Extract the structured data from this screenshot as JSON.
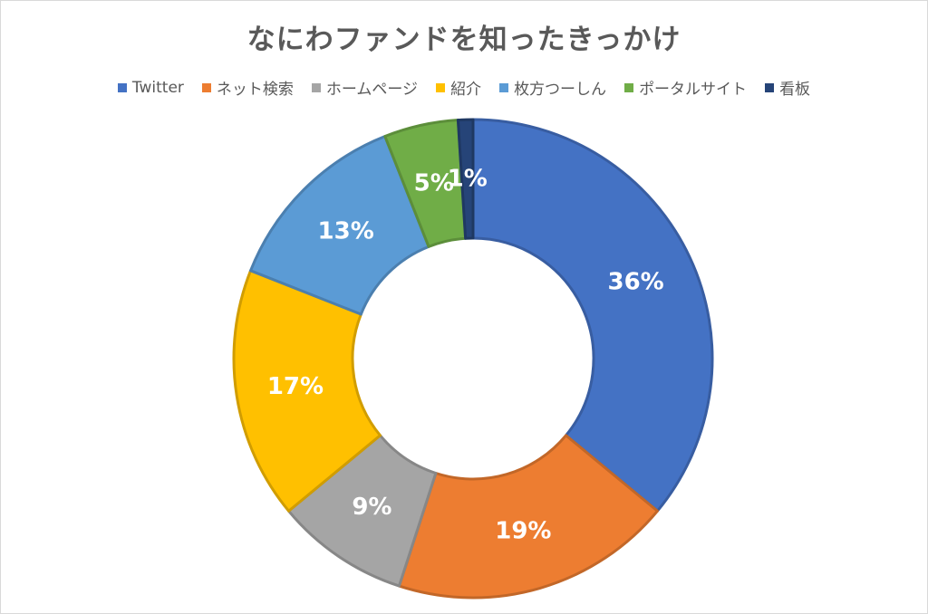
{
  "chart_data": {
    "type": "pie",
    "subtype": "doughnut",
    "title": "なにわファンドを知ったきっかけ",
    "legend_position": "top",
    "categories": [
      "Twitter",
      "ネット検索",
      "ホームページ",
      "紹介",
      "枚方つーしん",
      "ポータルサイト",
      "看板"
    ],
    "values": [
      36,
      19,
      9,
      17,
      13,
      5,
      1
    ],
    "labels": [
      "36%",
      "19%",
      "9%",
      "17%",
      "13%",
      "5%",
      "1%"
    ],
    "colors": [
      "#4472C4",
      "#ED7D31",
      "#A5A5A5",
      "#FFC000",
      "#5B9BD5",
      "#70AD47",
      "#264478"
    ],
    "label_colors": [
      "#ffffff",
      "#ffffff",
      "#ffffff",
      "#ffffff",
      "#ffffff",
      "#ffffff",
      "#ffffff"
    ]
  }
}
